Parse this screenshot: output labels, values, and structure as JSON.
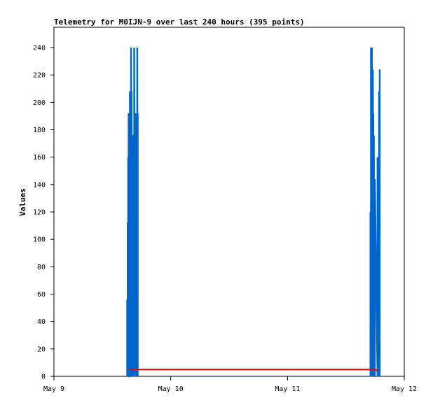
{
  "chart_data": {
    "type": "line",
    "title": "Telemetry for M0IJN-9 over last 240 hours (395 points)",
    "xlabel": "",
    "ylabel": "Values",
    "xlim": [
      0,
      72
    ],
    "ylim": [
      0,
      255
    ],
    "x_unit": "hours since May 9 00:00",
    "x_ticks": [
      {
        "value": 0,
        "label": "May 9"
      },
      {
        "value": 24,
        "label": "May 10"
      },
      {
        "value": 48,
        "label": "May 11"
      },
      {
        "value": 72,
        "label": "May 12"
      }
    ],
    "y_ticks": [
      0,
      20,
      40,
      60,
      80,
      100,
      120,
      140,
      160,
      180,
      200,
      220,
      240
    ],
    "grid": false,
    "legend": "none",
    "series": [
      {
        "color": "#0066cc",
        "style": "spike",
        "points": [
          [
            15.05,
            56
          ],
          [
            15.15,
            112
          ],
          [
            15.25,
            160
          ],
          [
            15.35,
            192
          ],
          [
            15.45,
            0
          ],
          [
            15.6,
            208
          ],
          [
            15.72,
            176
          ],
          [
            15.85,
            240
          ],
          [
            15.95,
            208
          ],
          [
            16.05,
            56
          ],
          [
            16.25,
            176
          ],
          [
            16.4,
            120
          ],
          [
            16.5,
            240
          ],
          [
            16.62,
            64
          ],
          [
            16.72,
            144
          ],
          [
            16.82,
            192
          ],
          [
            16.92,
            64
          ],
          [
            17.02,
            112
          ],
          [
            17.12,
            240
          ],
          [
            17.22,
            192
          ],
          [
            65.05,
            120
          ],
          [
            65.15,
            240
          ],
          [
            65.25,
            128
          ],
          [
            65.35,
            240
          ],
          [
            65.45,
            104
          ],
          [
            65.55,
            224
          ],
          [
            65.65,
            192
          ],
          [
            65.75,
            176
          ],
          [
            65.85,
            16
          ],
          [
            65.95,
            144
          ],
          [
            66.5,
            160
          ],
          [
            66.6,
            112
          ],
          [
            66.7,
            104
          ],
          [
            66.82,
            208
          ],
          [
            66.95,
            224
          ]
        ]
      },
      {
        "color": "#ff0000",
        "style": "line",
        "points": [
          [
            15.5,
            5
          ],
          [
            16.0,
            5
          ],
          [
            16.5,
            5
          ],
          [
            17.2,
            5
          ],
          [
            66.0,
            5
          ],
          [
            66.5,
            4
          ]
        ]
      }
    ]
  }
}
